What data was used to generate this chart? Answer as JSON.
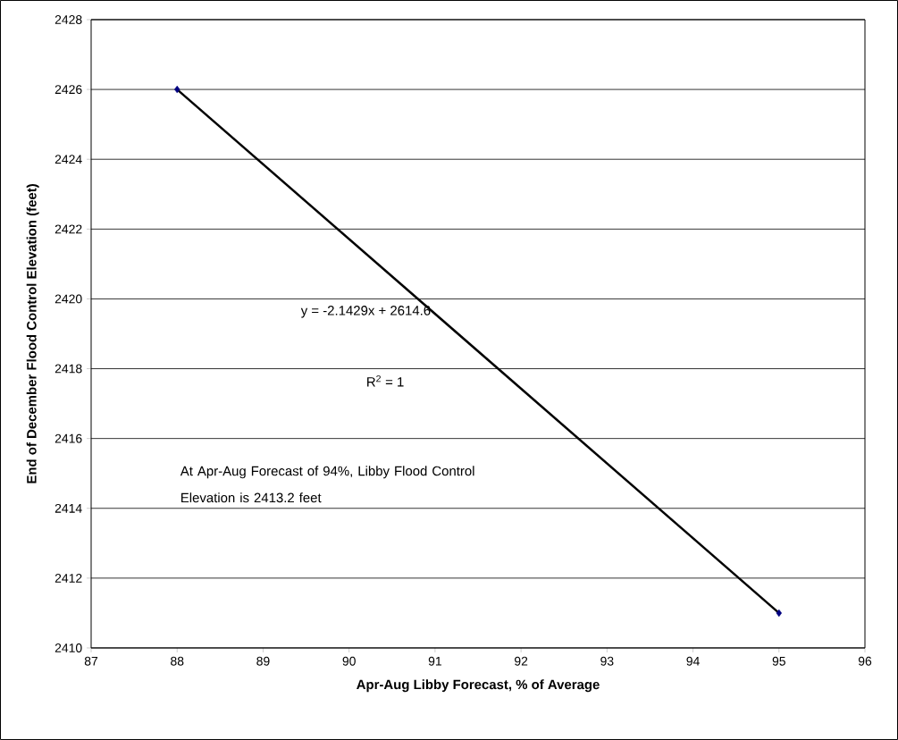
{
  "chart_data": {
    "type": "scatter",
    "xlabel": "Apr-Aug Libby Forecast, % of Average",
    "ylabel": "End of December Flood Control Elevation (feet)",
    "xlim": [
      87,
      96
    ],
    "xticks": [
      87,
      88,
      89,
      90,
      91,
      92,
      93,
      94,
      95,
      96
    ],
    "ylim": [
      2410,
      2428
    ],
    "yticks": [
      2410,
      2412,
      2414,
      2416,
      2418,
      2420,
      2422,
      2424,
      2426,
      2428
    ],
    "grid": "y",
    "x": [
      88,
      95
    ],
    "series": [
      {
        "type": "line",
        "color": "#000000",
        "marker": "none",
        "line_style": "solid",
        "values": [
          2426,
          2411
        ]
      },
      {
        "color": "#000080",
        "marker": "diamond",
        "values": [
          2426,
          2411
        ]
      }
    ],
    "annotations": [
      "y = -2.1429x + 2614.6",
      "R$^{2}$ = 1",
      "At Apr-Aug Forecast of 94%, Libby Flood Control Elevation is 2413.2 feet"
    ]
  }
}
